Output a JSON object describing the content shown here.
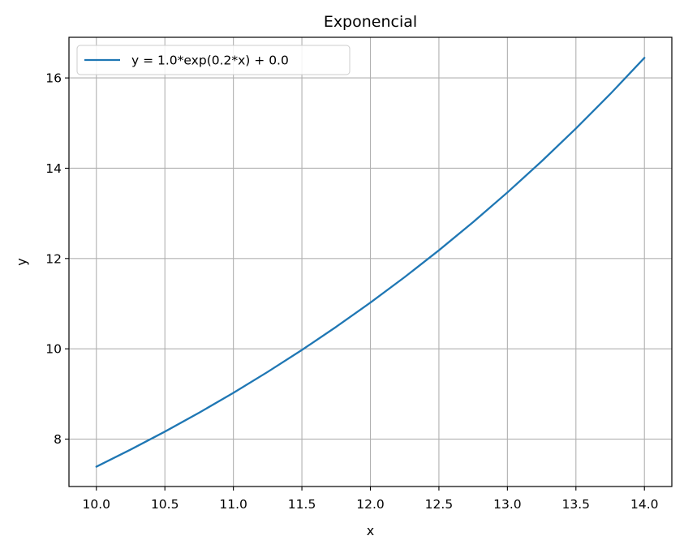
{
  "chart_data": {
    "type": "line",
    "title": "Exponencial",
    "xlabel": "x",
    "ylabel": "y",
    "xlim": [
      9.8,
      14.2
    ],
    "ylim": [
      6.95,
      16.9
    ],
    "x_ticks": [
      10.0,
      10.5,
      11.0,
      11.5,
      12.0,
      12.5,
      13.0,
      13.5,
      14.0
    ],
    "x_tick_labels": [
      "10.0",
      "10.5",
      "11.0",
      "11.5",
      "12.0",
      "12.5",
      "13.0",
      "13.5",
      "14.0"
    ],
    "y_ticks": [
      8,
      10,
      12,
      14,
      16
    ],
    "y_tick_labels": [
      "8",
      "10",
      "12",
      "14",
      "16"
    ],
    "grid": true,
    "legend_position": "upper-left",
    "series": [
      {
        "name": "y = 1.0*exp(0.2*x) + 0.0",
        "color": "#1f77b4",
        "x": [
          10.0,
          10.25,
          10.5,
          10.75,
          11.0,
          11.25,
          11.5,
          11.75,
          12.0,
          12.25,
          12.5,
          12.75,
          13.0,
          13.25,
          13.5,
          13.75,
          14.0
        ],
        "y": [
          7.389,
          7.768,
          8.166,
          8.585,
          9.025,
          9.488,
          9.974,
          10.486,
          11.023,
          11.588,
          12.182,
          12.807,
          13.464,
          14.154,
          14.88,
          15.643,
          16.445
        ]
      }
    ]
  }
}
